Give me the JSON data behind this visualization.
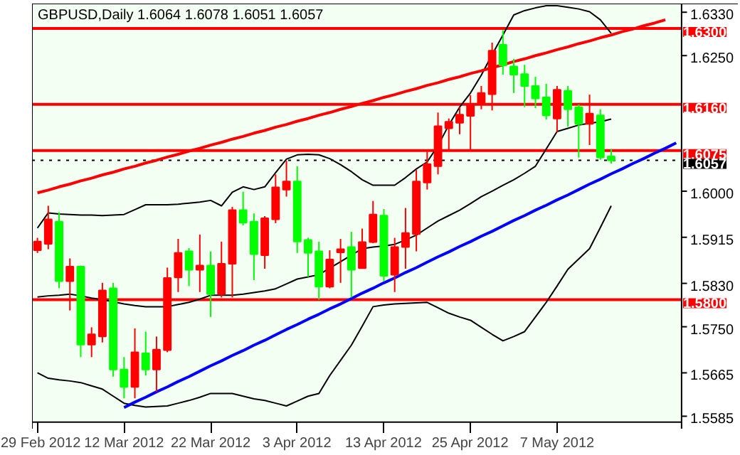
{
  "chart_data": {
    "type": "candlestick",
    "title": "GBPUSD,Daily  1.6064 1.6078 1.6051 1.6057",
    "categories": [
      "29 Feb 2012",
      null,
      null,
      null,
      null,
      null,
      null,
      null,
      "12 Mar 2012",
      null,
      null,
      null,
      null,
      null,
      null,
      null,
      "22 Mar 2012",
      null,
      null,
      null,
      null,
      null,
      null,
      null,
      "3 Apr 2012",
      null,
      null,
      null,
      null,
      null,
      null,
      null,
      "13 Apr 2012",
      null,
      null,
      null,
      null,
      null,
      null,
      null,
      "25 Apr 2012",
      null,
      null,
      null,
      null,
      null,
      null,
      null,
      "7 May 2012",
      null,
      null,
      null,
      null,
      null,
      null,
      null,
      null,
      null,
      null,
      null
    ],
    "ohlc": [
      [
        1.5891,
        1.5914,
        1.5886,
        1.5907
      ],
      [
        1.5903,
        1.5973,
        1.5893,
        1.5948
      ],
      [
        1.5944,
        1.5961,
        1.5821,
        1.5834
      ],
      [
        1.5834,
        1.5876,
        1.578,
        1.5861
      ],
      [
        1.5861,
        1.5863,
        1.5694,
        1.5717
      ],
      [
        1.5717,
        1.5749,
        1.5694,
        1.5736
      ],
      [
        1.5732,
        1.5831,
        1.5721,
        1.5817
      ],
      [
        1.5821,
        1.5831,
        1.5658,
        1.5671
      ],
      [
        1.5671,
        1.5694,
        1.5618,
        1.5639
      ],
      [
        1.5639,
        1.5747,
        1.5618,
        1.5703
      ],
      [
        1.5701,
        1.5741,
        1.566,
        1.5671
      ],
      [
        1.5671,
        1.5732,
        1.563,
        1.5708
      ],
      [
        1.5707,
        1.5859,
        1.5703,
        1.584
      ],
      [
        1.5841,
        1.5912,
        1.5814,
        1.5886
      ],
      [
        1.5889,
        1.5895,
        1.5825,
        1.5855
      ],
      [
        1.5855,
        1.592,
        1.5814,
        1.5863
      ],
      [
        1.5863,
        1.5889,
        1.5768,
        1.581
      ],
      [
        1.581,
        1.5907,
        1.5804,
        1.5866
      ],
      [
        1.5866,
        1.5971,
        1.5804,
        1.5965
      ],
      [
        1.5965,
        1.5999,
        1.5937,
        1.5942
      ],
      [
        1.5944,
        1.5959,
        1.5836,
        1.5884
      ],
      [
        1.5882,
        1.5954,
        1.5857,
        1.595
      ],
      [
        1.5948,
        1.6031,
        1.5941,
        1.6007
      ],
      [
        1.6003,
        1.6056,
        1.599,
        1.6018
      ],
      [
        1.6018,
        1.6046,
        1.5886,
        1.5907
      ],
      [
        1.591,
        1.5914,
        1.5842,
        1.5886
      ],
      [
        1.5889,
        1.5907,
        1.58,
        1.5824
      ],
      [
        1.5824,
        1.5891,
        1.5821,
        1.5874
      ],
      [
        1.5887,
        1.5912,
        1.5831,
        1.5893
      ],
      [
        1.5897,
        1.5925,
        1.5804,
        1.5855
      ],
      [
        1.5858,
        1.5931,
        1.5858,
        1.5906
      ],
      [
        1.5906,
        1.5982,
        1.5904,
        1.5957
      ],
      [
        1.5955,
        1.5967,
        1.5834,
        1.5844
      ],
      [
        1.5846,
        1.5914,
        1.5814,
        1.5897
      ],
      [
        1.5897,
        1.5969,
        1.5857,
        1.5923
      ],
      [
        1.5921,
        1.6039,
        1.5889,
        1.6018
      ],
      [
        1.6016,
        1.6073,
        1.6003,
        1.605
      ],
      [
        1.6046,
        1.6145,
        1.6031,
        1.612
      ],
      [
        1.6116,
        1.6134,
        1.6075,
        1.6128
      ],
      [
        1.6126,
        1.6155,
        1.6105,
        1.6141
      ],
      [
        1.6139,
        1.6177,
        1.6075,
        1.616
      ],
      [
        1.616,
        1.6194,
        1.6151,
        1.6181
      ],
      [
        1.6179,
        1.6274,
        1.6149,
        1.6259
      ],
      [
        1.627,
        1.6297,
        1.6215,
        1.6232
      ],
      [
        1.623,
        1.6244,
        1.6181,
        1.6215
      ],
      [
        1.6216,
        1.6233,
        1.6155,
        1.6194
      ],
      [
        1.6194,
        1.6211,
        1.6153,
        1.6171
      ],
      [
        1.6173,
        1.6198,
        1.6132,
        1.614
      ],
      [
        1.6134,
        1.6194,
        1.6109,
        1.6187
      ],
      [
        1.6185,
        1.6194,
        1.6119,
        1.6151
      ],
      [
        1.6155,
        1.616,
        1.6062,
        1.6124
      ],
      [
        1.6124,
        1.6178,
        1.6085,
        1.6143
      ],
      [
        1.614,
        1.6151,
        1.6058,
        1.6062
      ],
      [
        1.6064,
        1.6078,
        1.6051,
        1.6057
      ],
      null,
      null,
      null,
      null,
      null,
      null
    ],
    "colors": [
      "#ff0000",
      "#ff0000",
      "#00ff00",
      "#ff0000",
      "#00ff00",
      "#ff0000",
      "#ff0000",
      "#00ff00",
      "#00ff00",
      "#ff0000",
      "#00ff00",
      "#ff0000",
      "#ff0000",
      "#ff0000",
      "#00ff00",
      "#ff0000",
      "#00ff00",
      "#ff0000",
      "#ff0000",
      "#00ff00",
      "#00ff00",
      "#ff0000",
      "#ff0000",
      "#ff0000",
      "#00ff00",
      "#00ff00",
      "#00ff00",
      "#ff0000",
      "#ff0000",
      "#00ff00",
      "#ff0000",
      "#ff0000",
      "#00ff00",
      "#ff0000",
      "#ff0000",
      "#ff0000",
      "#ff0000",
      "#ff0000",
      "#ff0000",
      "#ff0000",
      "#ff0000",
      "#ff0000",
      "#ff0000",
      "#00ff00",
      "#00ff00",
      "#00ff00",
      "#00ff00",
      "#00ff00",
      "#ff0000",
      "#00ff00",
      "#00ff00",
      "#ff0000",
      "#00ff00",
      "#00ff00",
      null,
      null,
      null,
      null,
      null,
      null
    ],
    "series": [
      {
        "type": "line",
        "color": "#000000",
        "values": [
          1.5932,
          1.596,
          1.5958,
          1.5957,
          1.5956,
          1.5956,
          1.5955,
          1.5956,
          1.5957,
          1.5966,
          1.5975,
          1.5975,
          1.5975,
          1.5976,
          1.5978,
          1.598,
          1.5983,
          1.5973,
          1.5998,
          1.6008,
          1.6003,
          1.6008,
          1.6034,
          1.6059,
          1.6067,
          1.6068,
          1.6067,
          1.606,
          1.6049,
          1.6036,
          1.6021,
          1.6011,
          1.6011,
          1.6011,
          1.6025,
          1.6041,
          1.6054,
          1.6084,
          1.6122,
          1.6155,
          1.6181,
          1.6214,
          1.6252,
          1.6288,
          1.6325,
          1.6333,
          1.6338,
          1.6342,
          1.6342,
          1.6339,
          1.6336,
          1.6331,
          1.6316,
          1.6291,
          null,
          null,
          null,
          null,
          null,
          null
        ]
      },
      {
        "type": "line",
        "color": "#000000",
        "values": [
          1.5805,
          1.5807,
          1.5808,
          1.581,
          1.5807,
          1.5803,
          1.58,
          1.5796,
          1.5792,
          1.5789,
          1.5787,
          1.5787,
          1.5787,
          1.5791,
          1.5795,
          1.5801,
          1.5808,
          1.5808,
          1.5808,
          1.581,
          1.5813,
          1.5816,
          1.582,
          1.5829,
          1.5838,
          1.5842,
          1.5846,
          1.5858,
          1.587,
          1.5882,
          1.5894,
          1.5897,
          1.5899,
          1.5902,
          1.591,
          1.5919,
          1.5932,
          1.5945,
          1.5955,
          1.5965,
          1.5977,
          1.599,
          1.6,
          1.6011,
          1.6021,
          1.6033,
          1.6046,
          1.6078,
          1.611,
          1.6116,
          1.6122,
          1.6125,
          1.6128,
          1.6133,
          null,
          null,
          null,
          null,
          null,
          null
        ]
      },
      {
        "type": "line",
        "color": "#000000",
        "values": [
          1.5665,
          1.5655,
          1.5652,
          1.565,
          1.5647,
          1.5641,
          1.5635,
          1.5622,
          1.5609,
          1.5605,
          1.5602,
          1.5603,
          1.5604,
          1.5609,
          1.5614,
          1.562,
          1.5627,
          1.5627,
          1.5627,
          1.5622,
          1.5617,
          1.5614,
          1.5609,
          1.5604,
          1.5613,
          1.5622,
          1.5627,
          1.566,
          1.5688,
          1.5716,
          1.5751,
          1.5787,
          1.579,
          1.5792,
          1.5793,
          1.5794,
          1.5795,
          1.5785,
          1.5775,
          1.5768,
          1.5762,
          1.5749,
          1.5736,
          1.5724,
          1.5732,
          1.5741,
          1.5768,
          1.5795,
          1.5825,
          1.5856,
          1.5875,
          1.5894,
          1.5933,
          1.5973,
          null,
          null,
          null,
          null,
          null,
          null
        ]
      },
      {
        "type": "line",
        "color": "#ff0000",
        "values": [
          1.5997,
          1.6002,
          1.6008,
          1.6013,
          1.6019,
          1.6024,
          1.603,
          1.6035,
          1.6041,
          1.6046,
          1.6052,
          1.6057,
          1.6063,
          1.6068,
          1.6074,
          1.6079,
          1.6085,
          1.609,
          1.6096,
          1.6101,
          1.6107,
          1.6112,
          1.6118,
          1.6123,
          1.6129,
          1.6134,
          1.614,
          1.6145,
          1.6151,
          1.6156,
          1.6162,
          1.6167,
          1.6173,
          1.6178,
          1.6184,
          1.6189,
          1.6195,
          1.62,
          1.6206,
          1.6211,
          1.6217,
          1.6222,
          1.6228,
          1.6233,
          1.6239,
          1.6244,
          1.625,
          1.6255,
          1.6261,
          1.6266,
          1.6272,
          1.6277,
          1.6283,
          1.6288,
          1.6294,
          1.6299,
          1.6305,
          1.631,
          1.6316,
          null
        ]
      },
      {
        "type": "line",
        "color": "#0000ff",
        "values": [
          null,
          null,
          null,
          null,
          null,
          null,
          null,
          null,
          1.5601,
          1.5611,
          1.562,
          1.563,
          1.5639,
          1.5649,
          1.5658,
          1.5668,
          1.5678,
          1.5687,
          1.5697,
          1.5706,
          1.5716,
          1.5725,
          1.5735,
          1.5745,
          1.5754,
          1.5764,
          1.5773,
          1.5783,
          1.5792,
          1.5802,
          1.5812,
          1.5821,
          1.5831,
          1.584,
          1.585,
          1.5859,
          1.5869,
          1.5879,
          1.5888,
          1.5898,
          1.5907,
          1.5917,
          1.5926,
          1.5936,
          1.5946,
          1.5955,
          1.5965,
          1.5974,
          1.5984,
          1.5993,
          1.6003,
          1.6013,
          1.6022,
          1.6032,
          1.6041,
          1.6051,
          1.606,
          1.607,
          1.6079,
          1.6089
        ]
      }
    ],
    "ref_lines": [
      {
        "axis": "y",
        "value": 1.63,
        "label": "1.6300",
        "color": "#ff0000"
      },
      {
        "axis": "y",
        "value": 1.616,
        "label": "1.6160",
        "color": "#ff0000"
      },
      {
        "axis": "y",
        "value": 1.6075,
        "label": "1.6075",
        "color": "#ff0000"
      },
      {
        "axis": "y",
        "value": 1.58,
        "label": "1.5800",
        "color": "#ff0000"
      },
      {
        "axis": "y",
        "value": 1.6057,
        "label": "1.6057",
        "color": "#000000",
        "line_style": "dotted"
      }
    ],
    "ylim": [
      1.5574,
      1.6346
    ],
    "yticks": [
      {
        "value": 1.633,
        "label": "1.6330"
      },
      {
        "value": 1.625,
        "label": "1.6250"
      },
      {
        "value": 1.6,
        "label": "1.6000"
      },
      {
        "value": 1.5915,
        "label": "1.5915"
      },
      {
        "value": 1.583,
        "label": "1.5830"
      },
      {
        "value": 1.575,
        "label": "1.5750"
      },
      {
        "value": 1.5665,
        "label": "1.5665"
      },
      {
        "value": 1.5585,
        "label": "1.5585"
      }
    ],
    "grid": false
  }
}
